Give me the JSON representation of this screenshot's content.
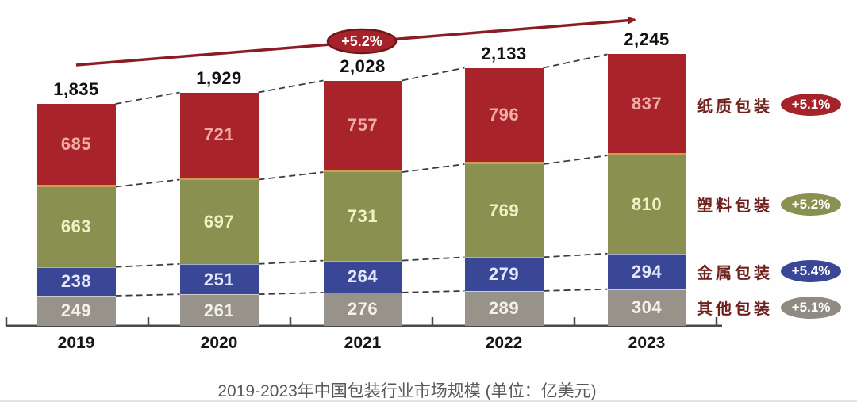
{
  "chart_data": {
    "type": "bar",
    "variant": "stacked-column",
    "title": "2019-2023年中国包装行业市场规模 (单位：亿美元)",
    "unit": "亿美元",
    "categories": [
      "2019",
      "2020",
      "2021",
      "2022",
      "2023"
    ],
    "totals": [
      "1,835",
      "1,929",
      "2,028",
      "2,133",
      "2,245"
    ],
    "series": [
      {
        "name": "其他包装",
        "key": "other-packaging",
        "values": [
          249,
          261,
          276,
          289,
          304
        ],
        "growth": "+5.1%",
        "color": "#97938a",
        "value_text_color": "#f4f2e8",
        "badge_color": "#8f8b82"
      },
      {
        "name": "金属包装",
        "key": "metal-packaging",
        "values": [
          238,
          251,
          264,
          279,
          294
        ],
        "growth": "+5.4%",
        "color": "#3a4796",
        "value_text_color": "#e3e8fa",
        "badge_color": "#3a4796"
      },
      {
        "name": "塑料包装",
        "key": "plastic-packaging",
        "values": [
          663,
          697,
          731,
          769,
          810
        ],
        "growth": "+5.2%",
        "color": "#8a9150",
        "value_text_color": "#eef2c4",
        "badge_color": "#8a9150"
      },
      {
        "name": "纸质包装",
        "key": "paper-packaging",
        "values": [
          685,
          721,
          757,
          796,
          837
        ],
        "growth": "+5.1%",
        "color": "#a9232a",
        "value_text_color": "#f0ada3",
        "badge_color": "#a7232b"
      }
    ],
    "legend_order": [
      "paper-packaging",
      "plastic-packaging",
      "metal-packaging",
      "other-packaging"
    ],
    "overall_growth_label": "+5.2%",
    "legend_position": "right",
    "grid": false,
    "ylim": [
      0,
      2245
    ],
    "accent_colors": {
      "arrow": "#8a1c22",
      "overall_badge_fill": "#a7232b",
      "overall_badge_stroke": "#74141a",
      "connector": "#3b3b3b",
      "axis": "#4a4a4a",
      "paper_plastic_separator": "#d09a57"
    }
  }
}
